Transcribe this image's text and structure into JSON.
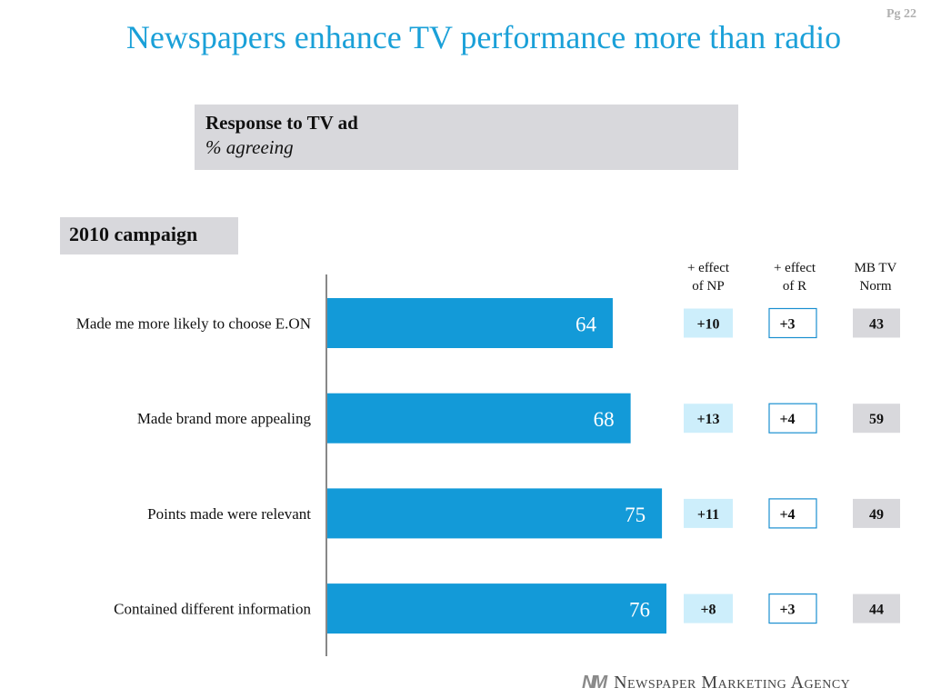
{
  "page_number": "Pg 22",
  "title": "Newspapers enhance TV performance more than radio",
  "subtitle": {
    "main": "Response to TV ad",
    "sub": "% agreeing"
  },
  "campaign_label": "2010 campaign",
  "columns": {
    "np": "+ effect\nof NP",
    "r": "+ effect\nof R",
    "norm": "MB TV\nNorm"
  },
  "footer": {
    "logo_mark": "NM",
    "org_name": "Newspaper Marketing Agency"
  },
  "colors": {
    "bar": "#139ad8",
    "title": "#1aa0d8",
    "np_box": "#cdeefb",
    "r_border": "#1a8fd0",
    "norm_box": "#d8d8dc"
  },
  "chart_data": {
    "type": "bar",
    "orientation": "horizontal",
    "categories": [
      "Made me more likely to choose E.ON",
      "Made brand more appealing",
      "Points made were relevant",
      "Contained different information"
    ],
    "values": [
      64,
      68,
      75,
      76
    ],
    "data_labels": [
      "64",
      "68",
      "75",
      "76"
    ],
    "effect_np": [
      "+10",
      "+13",
      "+11",
      "+8"
    ],
    "effect_r": [
      "+3",
      "+4",
      "+4",
      "+3"
    ],
    "mb_tv_norm": [
      "43",
      "59",
      "49",
      "44"
    ]
  }
}
